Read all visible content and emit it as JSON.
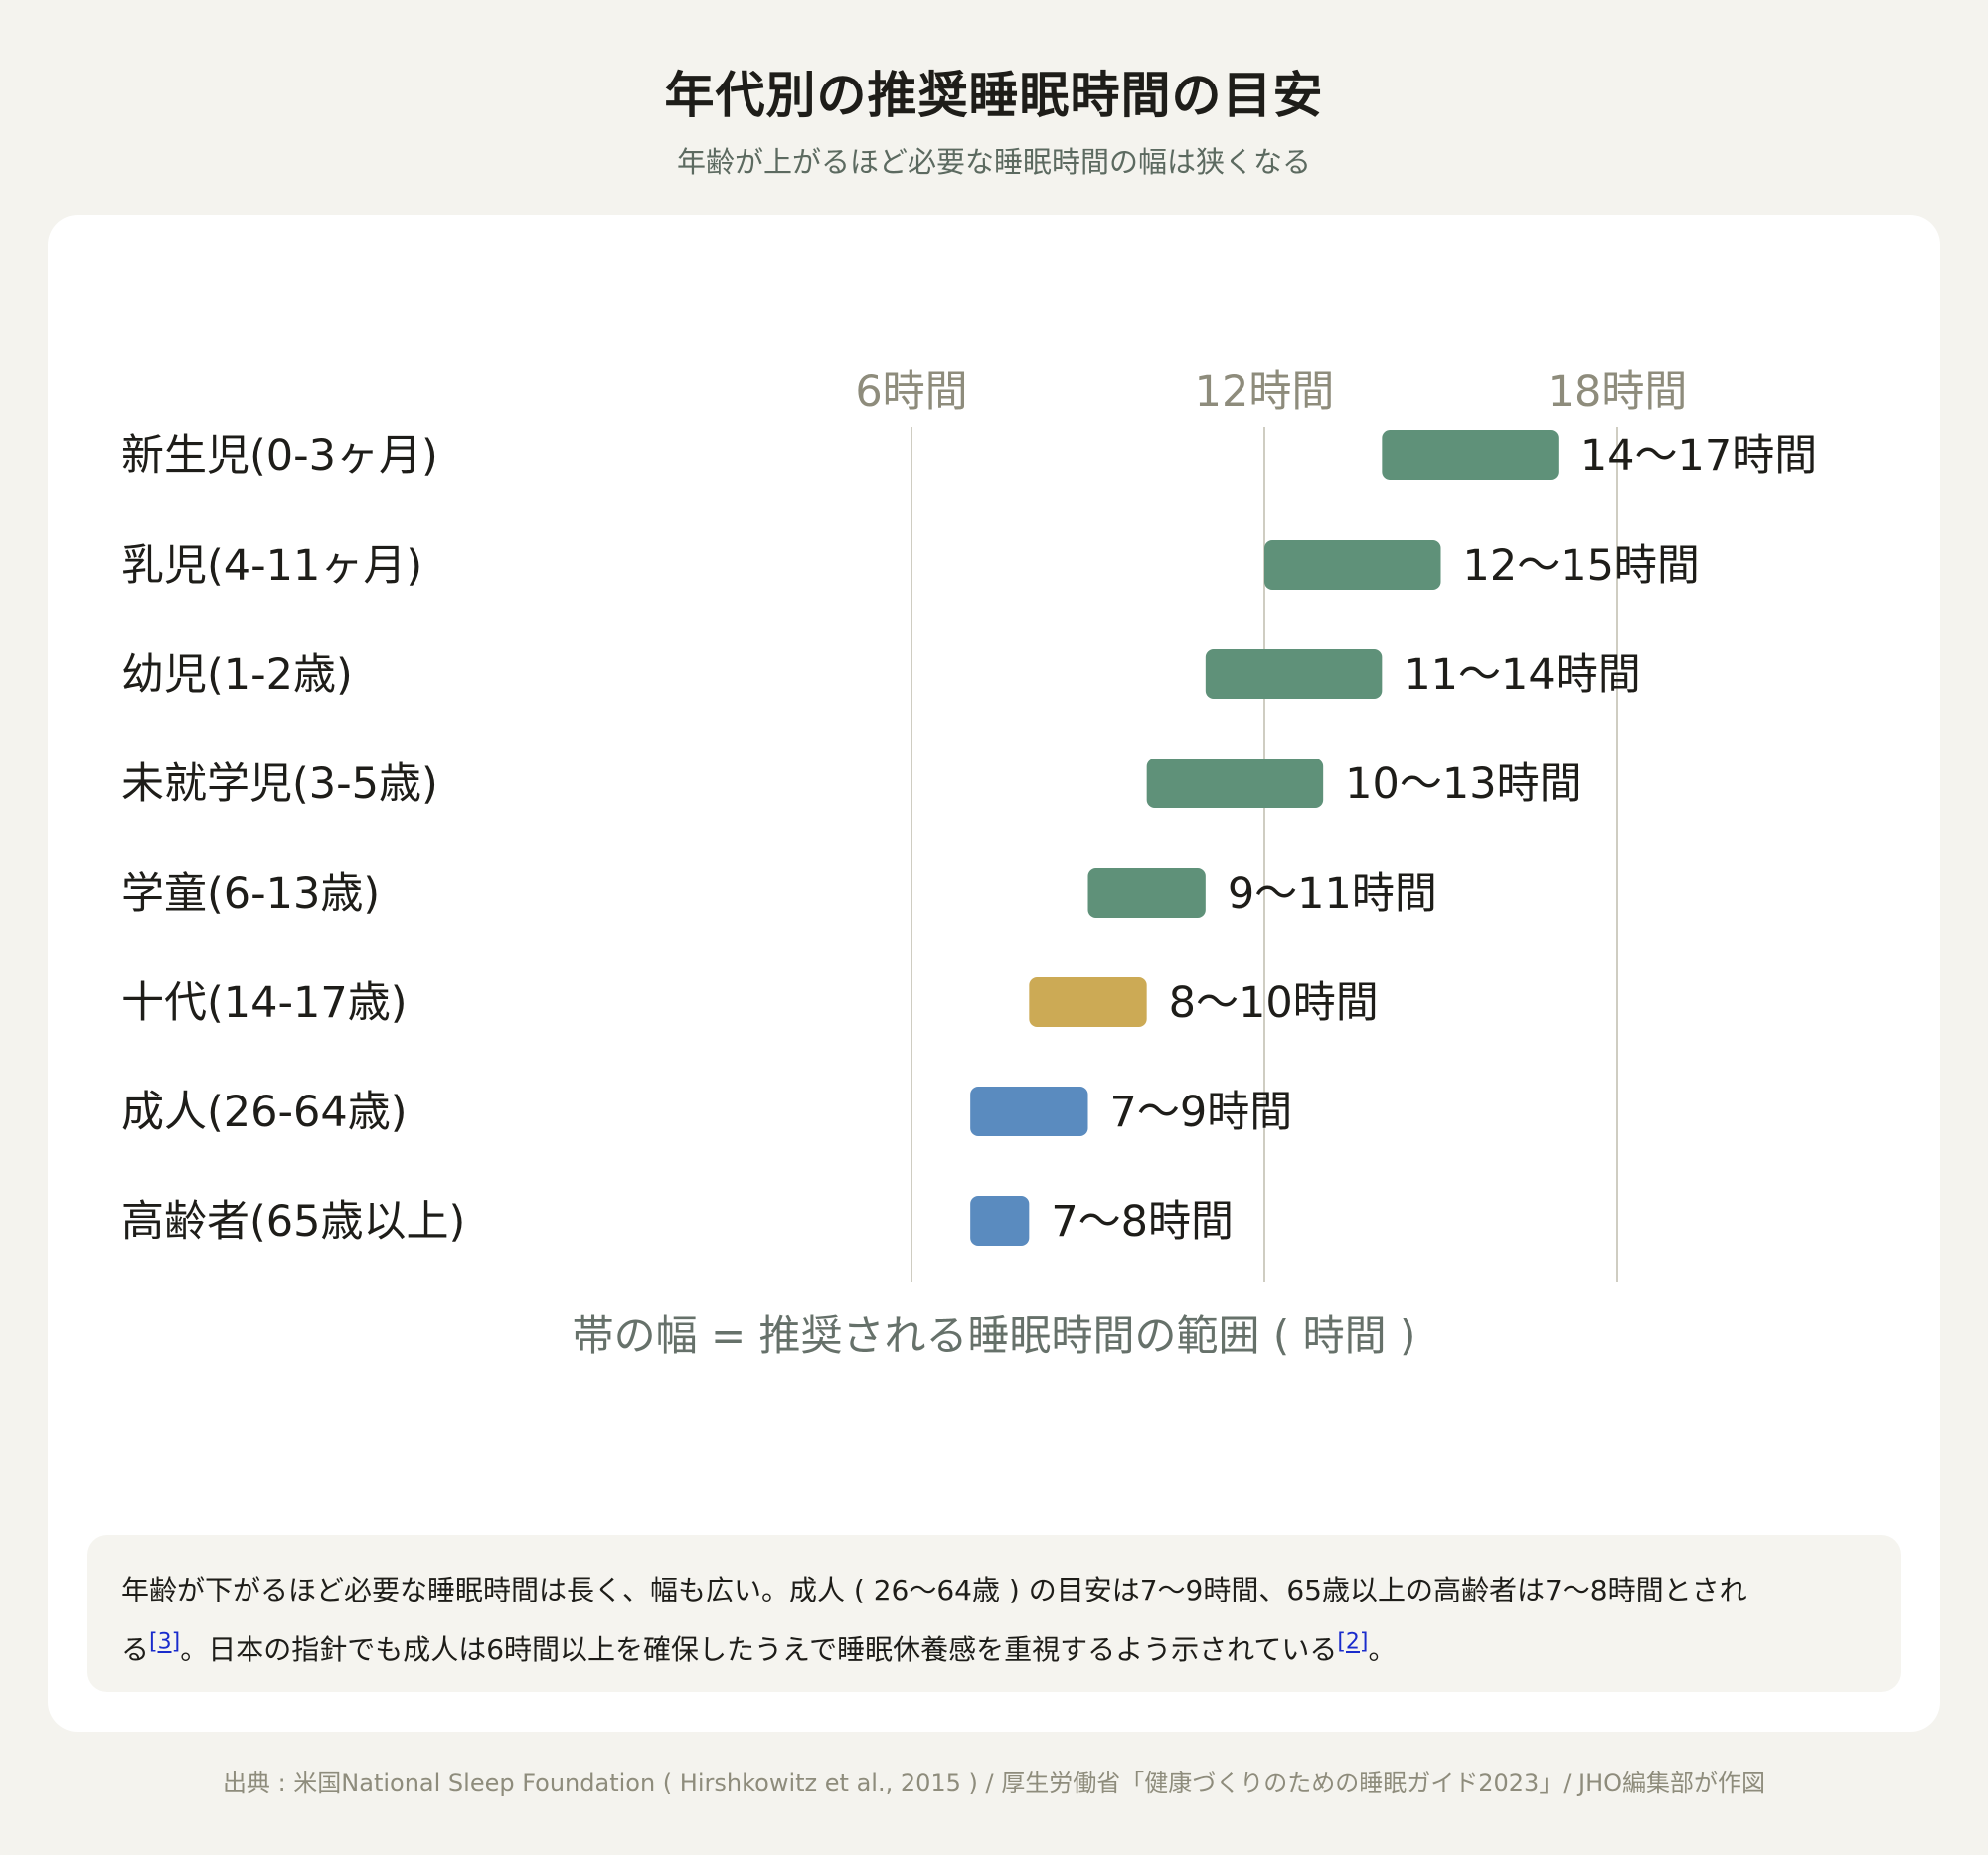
{
  "header": {
    "title": "年代別の推奨睡眠時間の目安",
    "subtitle": "年齢が上がるほど必要な睡眠時間の幅は狭くなる"
  },
  "chart_data": {
    "type": "bar",
    "subtype": "floating-range-horizontal",
    "categories": [
      "新生児(0-3ヶ月)",
      "乳児(4-11ヶ月)",
      "幼児(1-2歳)",
      "未就学児(3-5歳)",
      "学童(6-13歳)",
      "十代(14-17歳)",
      "成人(26-64歳)",
      "高齢者(65歳以上)"
    ],
    "ranges": [
      [
        14,
        17
      ],
      [
        12,
        15
      ],
      [
        11,
        14
      ],
      [
        10,
        13
      ],
      [
        9,
        11
      ],
      [
        8,
        10
      ],
      [
        7,
        9
      ],
      [
        7,
        8
      ]
    ],
    "data_labels": [
      "14〜17時間",
      "12〜15時間",
      "11〜14時間",
      "10〜13時間",
      "9〜11時間",
      "8〜10時間",
      "7〜9時間",
      "7〜8時間"
    ],
    "bar_colors": [
      "#5f9179",
      "#5f9179",
      "#5f9179",
      "#5f9179",
      "#5f9179",
      "#ccaa55",
      "#5a8bbf",
      "#5a8bbf"
    ],
    "x_ticks": [
      6,
      12,
      18
    ],
    "x_tick_labels": [
      "6時間",
      "12時間",
      "18時間"
    ],
    "xlim": [
      0,
      22
    ],
    "xlabel": "帯の幅 = 推奨される睡眠時間の範囲 ( 時間 )",
    "ylabel": "",
    "grid": true,
    "legend": "none"
  },
  "note": {
    "text_1": "年齢が下がるほど必要な睡眠時間は長く、幅も広い。成人 ( 26〜64歳 ) の目安は7〜9時間、65歳以上の高齢者は7〜8時間とされ",
    "text_2": "る",
    "ref_1": "[3]",
    "text_3": "。日本の指針でも成人は6時間以上を確保したうえで睡眠休養感を重視するよう示されている",
    "ref_2": "[2]",
    "text_4": "。"
  },
  "source": "出典 : 米国National Sleep Foundation ( Hirshkowitz et al., 2015 ) / 厚生労働省「健康づくりのための睡眠ガイド2023」/ JHO編集部が作図"
}
